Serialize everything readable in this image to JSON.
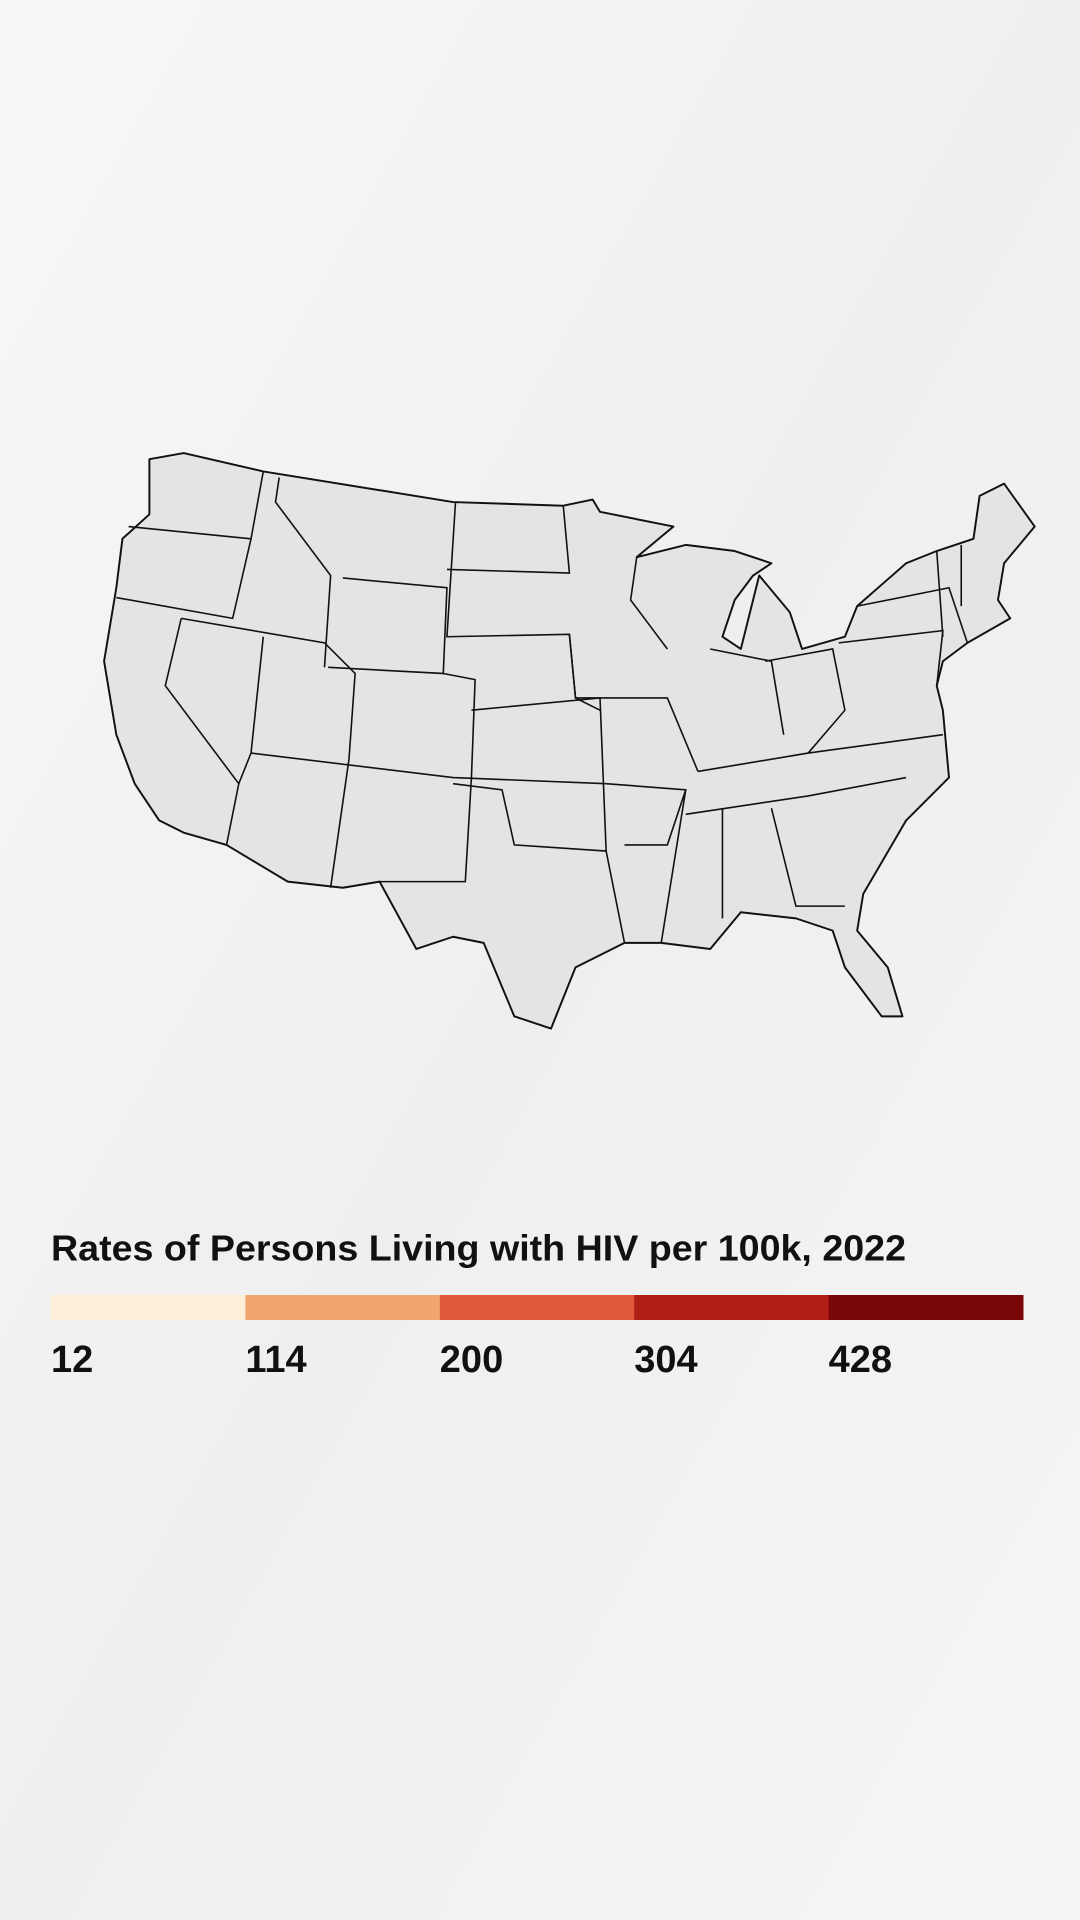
{
  "chart_data": {
    "type": "choropleth",
    "title": "Rates of Persons Living with HIV per 100k, 2022",
    "legend": {
      "breaks": [
        12,
        114,
        200,
        304,
        428
      ],
      "colors": [
        "#fdeed8",
        "#f2a56f",
        "#e05a3a",
        "#b01f14",
        "#7a0707"
      ]
    }
  }
}
